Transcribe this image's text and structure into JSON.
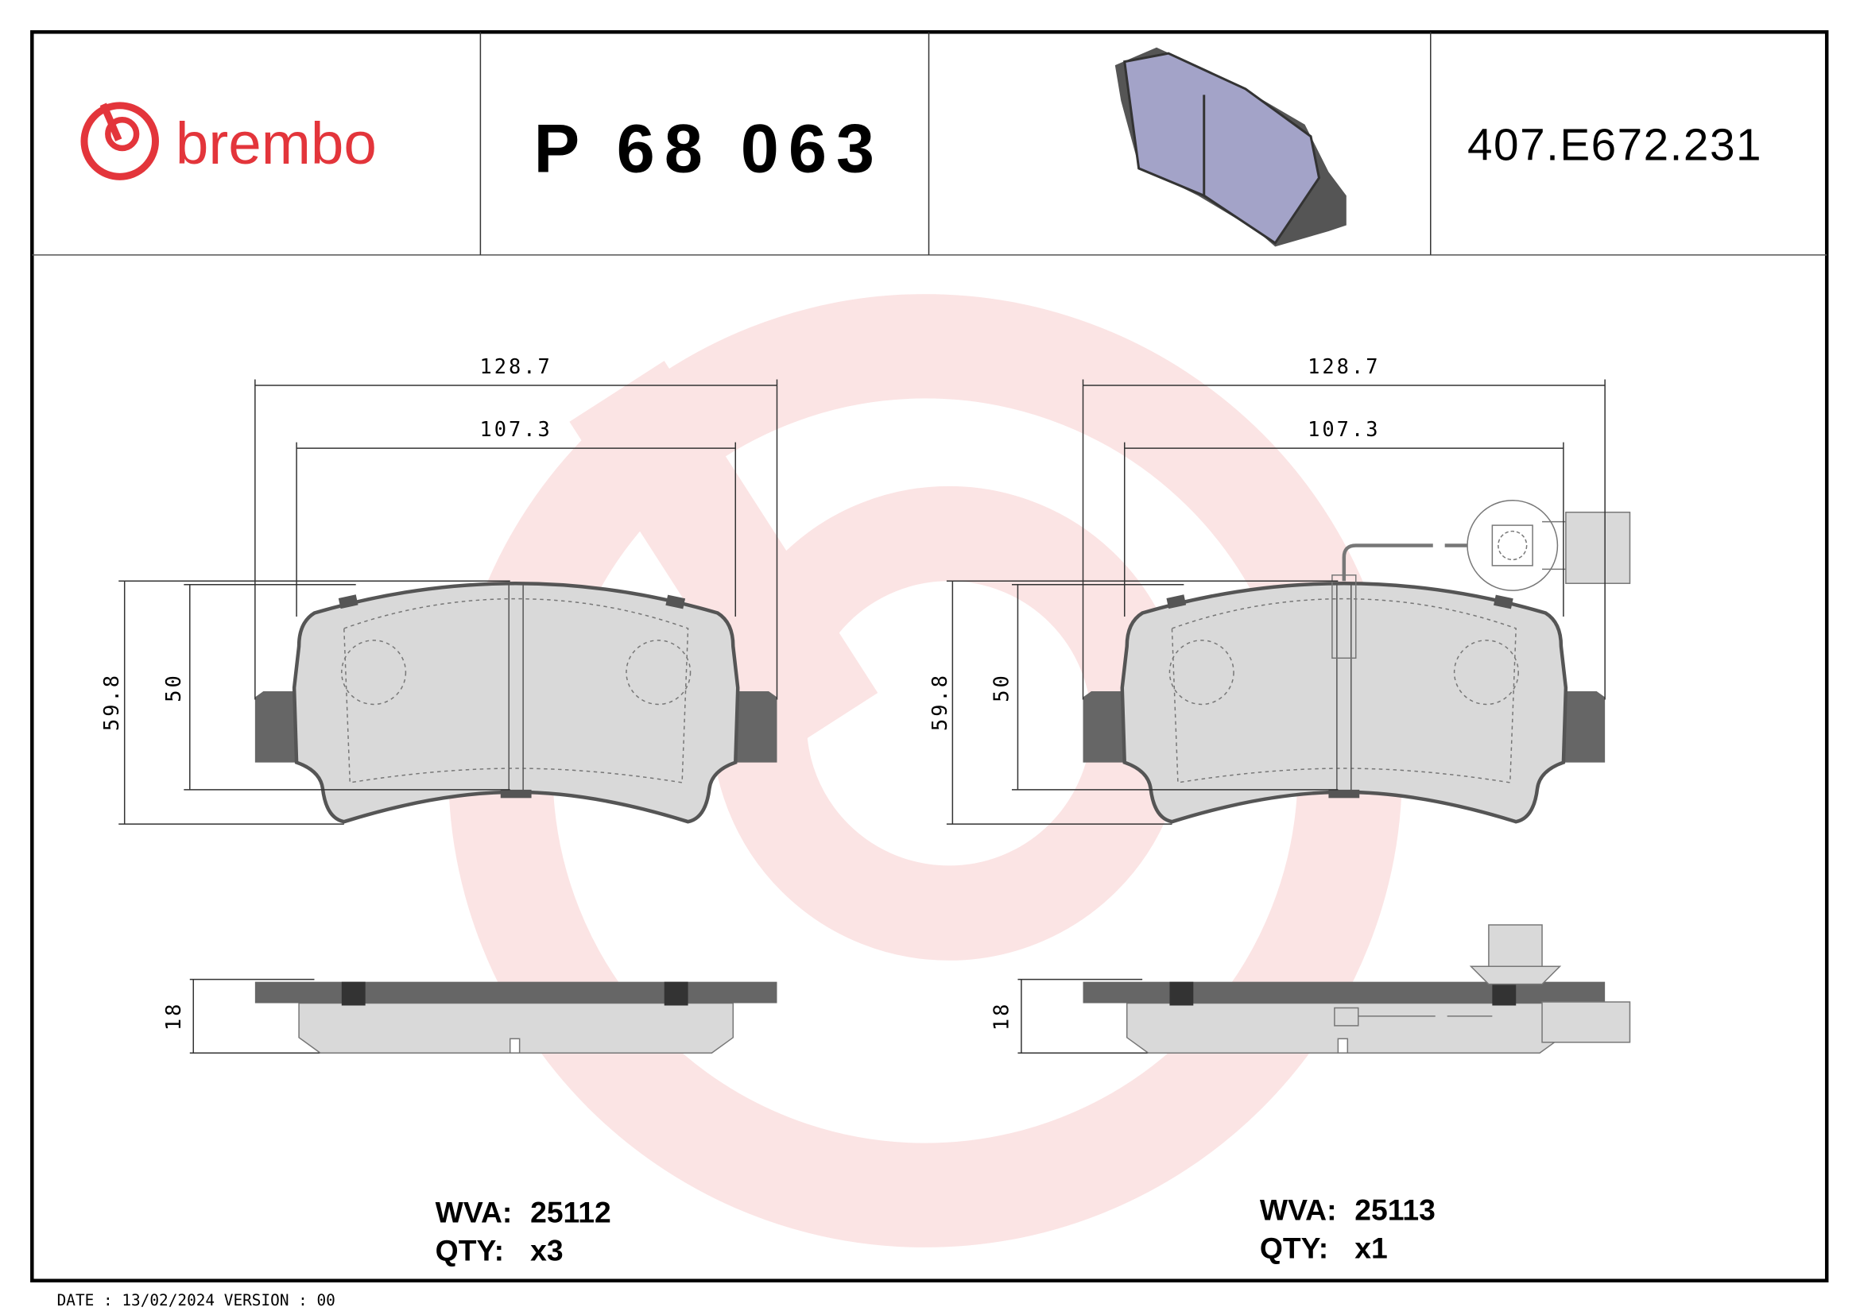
{
  "header": {
    "brand": "brembo",
    "brand_color": "#e3353b",
    "part_number": "P 68 063",
    "reference": "407.E672.231",
    "thumbnail_icon": "brake-pad-3d-icon"
  },
  "drawings": [
    {
      "dims": {
        "overall_width": "128.7",
        "pad_width": "107.3",
        "overall_height": "59.8",
        "pad_height": "50",
        "thickness": "18"
      },
      "wva_label": "WVA:",
      "wva": "25112",
      "qty_label": "QTY:",
      "qty": "x3"
    },
    {
      "dims": {
        "overall_width": "128.7",
        "pad_width": "107.3",
        "overall_height": "59.8",
        "pad_height": "50",
        "thickness": "18"
      },
      "wva_label": "WVA:",
      "wva": "25113",
      "qty_label": "QTY:",
      "qty": "x1"
    }
  ],
  "footer": {
    "text": "DATE : 13/02/2024 VERSION : 00"
  },
  "watermark_color": "#fbe4e4"
}
